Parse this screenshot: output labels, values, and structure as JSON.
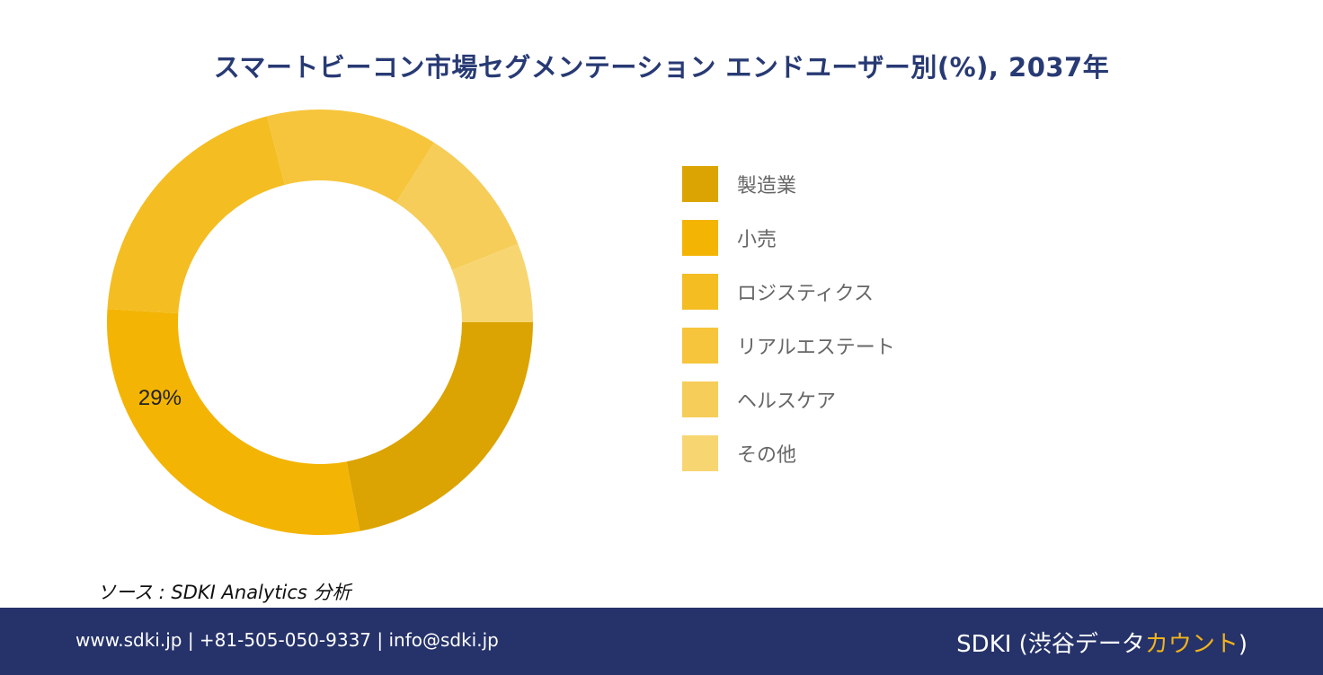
{
  "title": "スマートビーコン市場セグメンテーション エンドユーザー別(%), 2037年",
  "chart_data": {
    "type": "pie",
    "donut": true,
    "title": "スマートビーコン市場セグメンテーション エンドユーザー別(%), 2037年",
    "categories": [
      "製造業",
      "小売",
      "ロジスティクス",
      "リアルエステート",
      "ヘルスケア",
      "その他"
    ],
    "values": [
      22,
      29,
      20,
      13,
      10,
      6
    ],
    "colors": [
      "#dba402",
      "#f3b404",
      "#f4bd22",
      "#f6c53c",
      "#f6cd58",
      "#f7d672"
    ],
    "data_labels": [
      {
        "category": "小売",
        "text": "29%"
      }
    ],
    "legend_position": "right"
  },
  "source": "ソース : SDKI Analytics 分析",
  "footer": {
    "contact": "www.sdki.jp | +81-505-050-9337 | info@sdki.jp",
    "brand_prefix": "SDKI (渋谷データ",
    "brand_accent": "カウント",
    "brand_suffix": ")"
  }
}
